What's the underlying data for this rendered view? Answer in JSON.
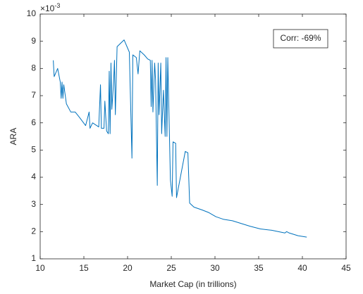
{
  "chart_data": {
    "type": "line",
    "xlabel": "Market Cap (in trillions)",
    "ylabel": "ARA",
    "y_multiplier": {
      "base": "×10",
      "exponent": "-3"
    },
    "annotation": "Corr: -69%",
    "xlim": [
      10,
      45
    ],
    "xticks": [
      10,
      15,
      20,
      25,
      30,
      35,
      40,
      45
    ],
    "ylim": [
      1,
      10
    ],
    "yticks": [
      1,
      2,
      3,
      4,
      5,
      6,
      7,
      8,
      9,
      10
    ],
    "grid": false,
    "series": [
      {
        "color": "#0072bd",
        "x": [
          11.5,
          11.6,
          12,
          12.3,
          12.4,
          12.5,
          12.6,
          12.7,
          13,
          13.5,
          14,
          14.5,
          15.2,
          15.6,
          15.7,
          16,
          16.7,
          16.9,
          17,
          17.3,
          17.4,
          17.6,
          17.8,
          17.9,
          18,
          18.1,
          18.2,
          18.4,
          18.5,
          18.6,
          18.8,
          19.6,
          20.2,
          20.5,
          20.6,
          21,
          21.2,
          21.4,
          21.9,
          22.3,
          22.6,
          22.7,
          22.8,
          22.9,
          23.1,
          23.2,
          23.4,
          23.5,
          23.6,
          23.8,
          23.9,
          24.1,
          24.3,
          24.4,
          24.5,
          24.6,
          24.9,
          25.1,
          25.2,
          25.5,
          25.6,
          26.1,
          26.6,
          26.9,
          27.1,
          27.6,
          28.5,
          29.3,
          30.1,
          31,
          32,
          33,
          34,
          35.2,
          36.5,
          38,
          38.2,
          38.5,
          39.5,
          40.5
        ],
        "values": [
          8.3,
          7.7,
          8.0,
          7.5,
          6.9,
          7.5,
          6.9,
          7.4,
          6.7,
          6.4,
          6.4,
          6.2,
          5.9,
          6.4,
          5.8,
          6.0,
          5.85,
          7.4,
          5.8,
          5.8,
          6.8,
          5.7,
          5.6,
          7.9,
          5.6,
          8.2,
          6.5,
          7.5,
          8.3,
          6.3,
          8.8,
          9.05,
          8.6,
          4.7,
          8.5,
          8.4,
          7.8,
          8.65,
          8.5,
          8.35,
          8.3,
          6.6,
          8.3,
          6.4,
          8.2,
          7.6,
          3.7,
          8.2,
          6.3,
          8.2,
          5.6,
          7.2,
          5.5,
          8.4,
          5.5,
          8.4,
          3.9,
          3.3,
          5.3,
          5.25,
          3.25,
          4.1,
          4.95,
          4.9,
          3.05,
          2.9,
          2.8,
          2.7,
          2.55,
          2.45,
          2.4,
          2.3,
          2.2,
          2.1,
          2.05,
          1.95,
          2.0,
          1.95,
          1.85,
          1.8
        ]
      }
    ]
  }
}
